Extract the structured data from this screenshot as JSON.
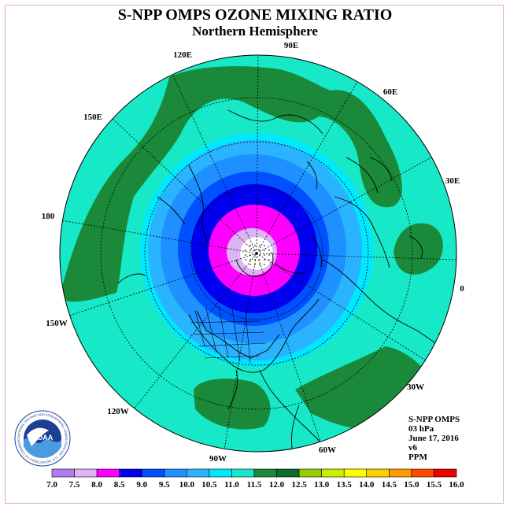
{
  "header": {
    "title": "S-NPP OMPS OZONE MIXING RATIO",
    "subtitle": "Northern Hemisphere"
  },
  "map": {
    "projection": "polar stereographic, north pole centered",
    "longitude_labels": [
      "90E",
      "60E",
      "30E",
      "0",
      "30W",
      "60W",
      "90W",
      "120W",
      "150W",
      "180",
      "150E",
      "120E"
    ]
  },
  "info": {
    "lines": [
      "S-NPP OMPS",
      "03 hPa",
      "June 17, 2016",
      "v6",
      "PPM"
    ]
  },
  "colorbar": {
    "ticks": [
      "7.0",
      "7.5",
      "8.0",
      "8.5",
      "9.0",
      "9.5",
      "10.0",
      "10.5",
      "11.0",
      "11.5",
      "12.0",
      "12.5",
      "13.0",
      "13.5",
      "14.0",
      "14.5",
      "15.0",
      "15.5",
      "16.0"
    ],
    "colors": [
      "#b57bf0",
      "#dcb4f5",
      "#ff00ff",
      "#0000ee",
      "#0050ff",
      "#1e90ff",
      "#2ab4ff",
      "#00e8ff",
      "#16e8c8",
      "#1a8a3a",
      "#0d6b2c",
      "#99cc00",
      "#ccee00",
      "#ffff00",
      "#ffd000",
      "#ff9a00",
      "#ff4a00",
      "#ee0000",
      "#8b5a3c"
    ]
  },
  "logo": {
    "text": "NOAA",
    "ring_text": "NATIONAL OCEANIC AND ATMOSPHERIC ADMINISTRATION · U.S. DEPARTMENT OF COMMERCE"
  }
}
